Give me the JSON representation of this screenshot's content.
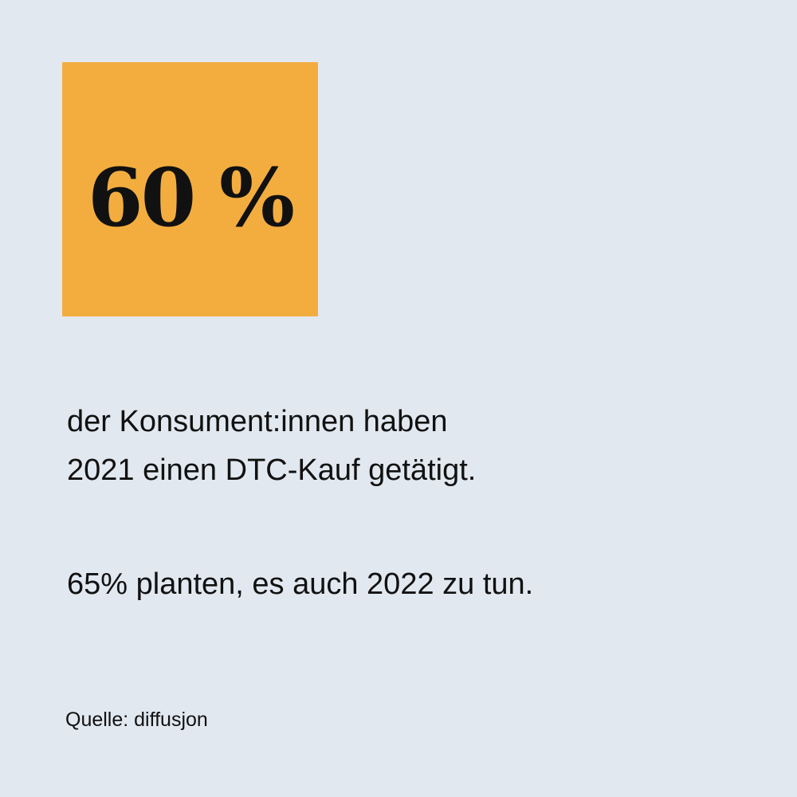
{
  "headline": {
    "value": "60 %"
  },
  "body": {
    "line1": "der Konsument:innen haben",
    "line2": "2021 einen DTC-Kauf getätigt.",
    "line3": "65% planten, es auch 2022 zu tun."
  },
  "source": "Quelle: diffusjon",
  "colors": {
    "background": "#e2e8f0",
    "accent": "#f3ad3f"
  }
}
